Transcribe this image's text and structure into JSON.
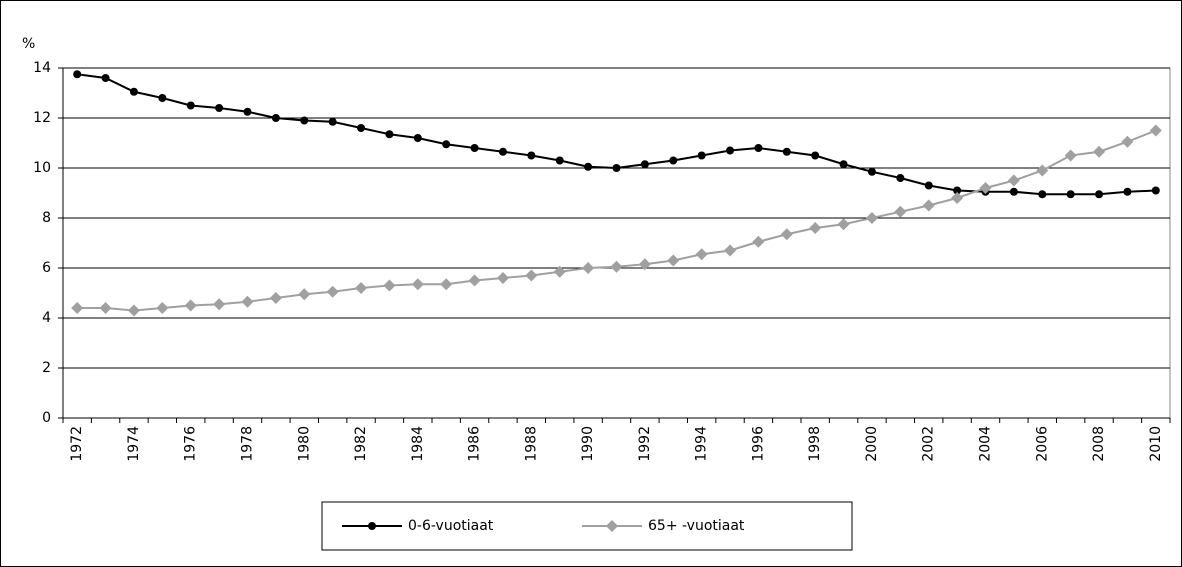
{
  "chart_data": {
    "type": "line",
    "y_label": "%",
    "categories": [
      "1972",
      null,
      "1974",
      null,
      "1976",
      null,
      "1978",
      null,
      "1980",
      null,
      "1982",
      null,
      "1984",
      null,
      "1986",
      null,
      "1988",
      null,
      "1990",
      null,
      "1992",
      null,
      "1994",
      null,
      "1996",
      null,
      "1998",
      null,
      "2000",
      null,
      "2002",
      null,
      "2004",
      null,
      "2006",
      null,
      "2008",
      null,
      "2010"
    ],
    "series": [
      {
        "name": "0-6-vuotiaat",
        "color": "#000000",
        "marker": "circle",
        "values": [
          13.75,
          13.6,
          13.05,
          12.8,
          12.5,
          12.4,
          12.25,
          12.0,
          11.9,
          11.85,
          11.6,
          11.35,
          11.2,
          10.95,
          10.8,
          10.65,
          10.5,
          10.3,
          10.05,
          10.0,
          10.15,
          10.3,
          10.5,
          10.7,
          10.8,
          10.65,
          10.5,
          10.15,
          9.85,
          9.6,
          9.3,
          9.1,
          9.05,
          9.05,
          8.95,
          8.95,
          8.95,
          9.05,
          9.1
        ]
      },
      {
        "name": "65+ -vuotiaat",
        "color": "#a0a0a0",
        "marker": "diamond",
        "values": [
          4.4,
          4.4,
          4.3,
          4.4,
          4.5,
          4.55,
          4.65,
          4.8,
          4.95,
          5.05,
          5.2,
          5.3,
          5.35,
          5.35,
          5.5,
          5.6,
          5.7,
          5.85,
          6.0,
          6.05,
          6.15,
          6.3,
          6.55,
          6.7,
          7.05,
          7.35,
          7.6,
          7.75,
          8.0,
          8.25,
          8.5,
          8.8,
          9.2,
          9.5,
          9.9,
          10.5,
          10.65,
          11.05,
          11.5
        ]
      }
    ],
    "ylim": [
      0,
      14
    ],
    "yticks": [
      0,
      2,
      4,
      6,
      8,
      10,
      12,
      14
    ],
    "grid": true,
    "legend": "bottom"
  }
}
